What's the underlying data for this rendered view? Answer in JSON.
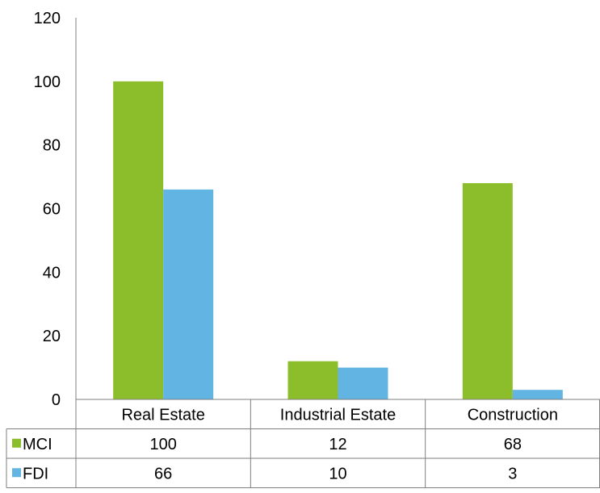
{
  "chart_data": {
    "type": "bar",
    "categories": [
      "Real Estate",
      "Industrial Estate",
      "Construction"
    ],
    "series": [
      {
        "name": "MCI",
        "values": [
          100,
          12,
          68
        ],
        "color": "#8cbd2b"
      },
      {
        "name": "FDI",
        "values": [
          66,
          10,
          3
        ],
        "color": "#62b4e3"
      }
    ],
    "ylim": [
      0,
      120
    ],
    "yticks": [
      0,
      20,
      40,
      60,
      80,
      100,
      120
    ],
    "grid": false,
    "legend": "data-table-below"
  }
}
